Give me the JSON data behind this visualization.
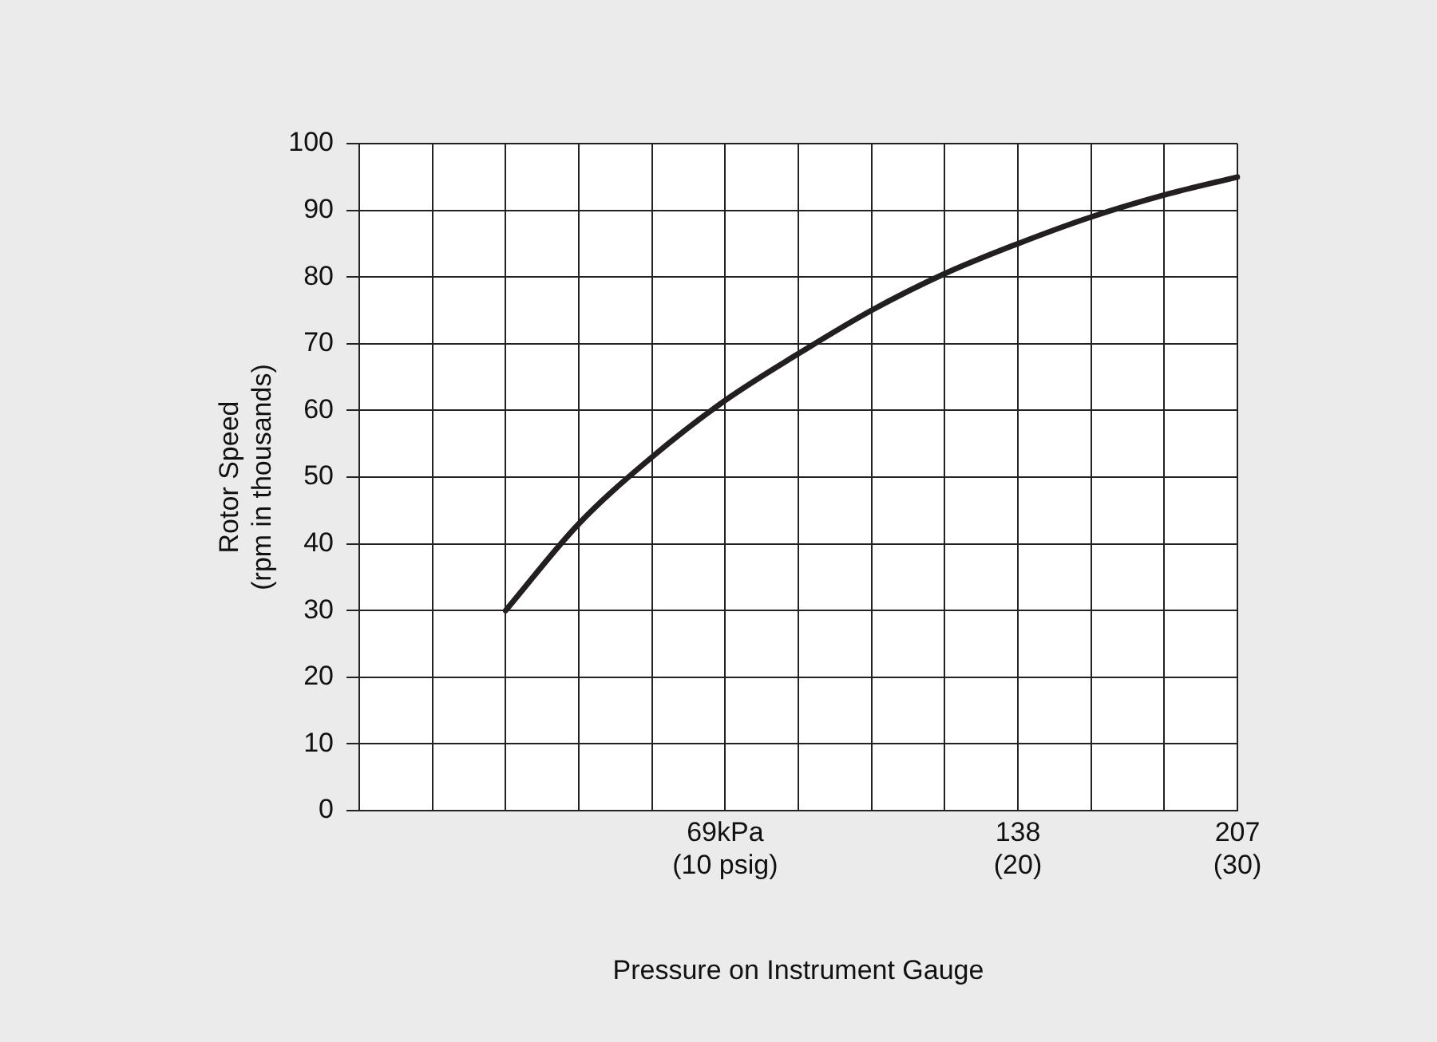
{
  "chart_data": {
    "type": "line",
    "xlabel": "Pressure on Instrument Gauge",
    "ylabel": "Rotor Speed\n(rpm in thousands)",
    "categories": [
      null,
      null,
      null,
      null,
      null,
      "69kPa\n(10 psig)",
      null,
      null,
      null,
      "138\n(20)",
      null,
      null,
      "207\n(30)"
    ],
    "series": [
      {
        "color": "#231f20",
        "values": [
          null,
          null,
          30,
          43,
          53,
          61.5,
          68.5,
          75,
          80.5,
          85,
          89,
          92.3,
          95
        ]
      }
    ],
    "ylim": [
      0,
      100
    ],
    "yticks": [
      0,
      10,
      20,
      30,
      40,
      50,
      60,
      70,
      80,
      90,
      100
    ],
    "grid": true,
    "marker": "none",
    "line_style": "solid",
    "legend": false
  }
}
